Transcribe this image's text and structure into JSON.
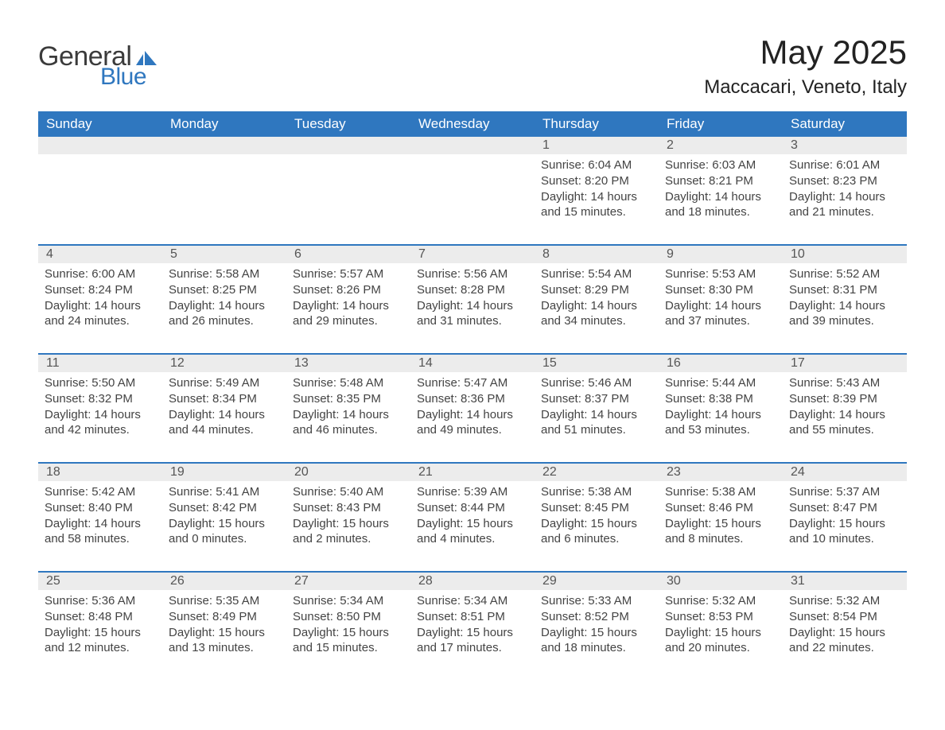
{
  "colors": {
    "brand_blue": "#2f77bf",
    "header_bg": "#2f77bf",
    "header_fg": "#ffffff",
    "row_separator": "#2f77bf",
    "daynum_bg": "#ececec",
    "text": "#333333",
    "page_bg": "#ffffff"
  },
  "logo": {
    "line1": "General",
    "line2": "Blue"
  },
  "title": {
    "month_year": "May 2025",
    "location": "Maccacari, Veneto, Italy"
  },
  "weekdays": [
    "Sunday",
    "Monday",
    "Tuesday",
    "Wednesday",
    "Thursday",
    "Friday",
    "Saturday"
  ],
  "labels": {
    "sunrise": "Sunrise",
    "sunset": "Sunset",
    "daylight": "Daylight"
  },
  "calendar": {
    "first_weekday_index": 4,
    "days": [
      {
        "n": 1,
        "sunrise": "6:04 AM",
        "sunset": "8:20 PM",
        "daylight": "14 hours and 15 minutes."
      },
      {
        "n": 2,
        "sunrise": "6:03 AM",
        "sunset": "8:21 PM",
        "daylight": "14 hours and 18 minutes."
      },
      {
        "n": 3,
        "sunrise": "6:01 AM",
        "sunset": "8:23 PM",
        "daylight": "14 hours and 21 minutes."
      },
      {
        "n": 4,
        "sunrise": "6:00 AM",
        "sunset": "8:24 PM",
        "daylight": "14 hours and 24 minutes."
      },
      {
        "n": 5,
        "sunrise": "5:58 AM",
        "sunset": "8:25 PM",
        "daylight": "14 hours and 26 minutes."
      },
      {
        "n": 6,
        "sunrise": "5:57 AM",
        "sunset": "8:26 PM",
        "daylight": "14 hours and 29 minutes."
      },
      {
        "n": 7,
        "sunrise": "5:56 AM",
        "sunset": "8:28 PM",
        "daylight": "14 hours and 31 minutes."
      },
      {
        "n": 8,
        "sunrise": "5:54 AM",
        "sunset": "8:29 PM",
        "daylight": "14 hours and 34 minutes."
      },
      {
        "n": 9,
        "sunrise": "5:53 AM",
        "sunset": "8:30 PM",
        "daylight": "14 hours and 37 minutes."
      },
      {
        "n": 10,
        "sunrise": "5:52 AM",
        "sunset": "8:31 PM",
        "daylight": "14 hours and 39 minutes."
      },
      {
        "n": 11,
        "sunrise": "5:50 AM",
        "sunset": "8:32 PM",
        "daylight": "14 hours and 42 minutes."
      },
      {
        "n": 12,
        "sunrise": "5:49 AM",
        "sunset": "8:34 PM",
        "daylight": "14 hours and 44 minutes."
      },
      {
        "n": 13,
        "sunrise": "5:48 AM",
        "sunset": "8:35 PM",
        "daylight": "14 hours and 46 minutes."
      },
      {
        "n": 14,
        "sunrise": "5:47 AM",
        "sunset": "8:36 PM",
        "daylight": "14 hours and 49 minutes."
      },
      {
        "n": 15,
        "sunrise": "5:46 AM",
        "sunset": "8:37 PM",
        "daylight": "14 hours and 51 minutes."
      },
      {
        "n": 16,
        "sunrise": "5:44 AM",
        "sunset": "8:38 PM",
        "daylight": "14 hours and 53 minutes."
      },
      {
        "n": 17,
        "sunrise": "5:43 AM",
        "sunset": "8:39 PM",
        "daylight": "14 hours and 55 minutes."
      },
      {
        "n": 18,
        "sunrise": "5:42 AM",
        "sunset": "8:40 PM",
        "daylight": "14 hours and 58 minutes."
      },
      {
        "n": 19,
        "sunrise": "5:41 AM",
        "sunset": "8:42 PM",
        "daylight": "15 hours and 0 minutes."
      },
      {
        "n": 20,
        "sunrise": "5:40 AM",
        "sunset": "8:43 PM",
        "daylight": "15 hours and 2 minutes."
      },
      {
        "n": 21,
        "sunrise": "5:39 AM",
        "sunset": "8:44 PM",
        "daylight": "15 hours and 4 minutes."
      },
      {
        "n": 22,
        "sunrise": "5:38 AM",
        "sunset": "8:45 PM",
        "daylight": "15 hours and 6 minutes."
      },
      {
        "n": 23,
        "sunrise": "5:38 AM",
        "sunset": "8:46 PM",
        "daylight": "15 hours and 8 minutes."
      },
      {
        "n": 24,
        "sunrise": "5:37 AM",
        "sunset": "8:47 PM",
        "daylight": "15 hours and 10 minutes."
      },
      {
        "n": 25,
        "sunrise": "5:36 AM",
        "sunset": "8:48 PM",
        "daylight": "15 hours and 12 minutes."
      },
      {
        "n": 26,
        "sunrise": "5:35 AM",
        "sunset": "8:49 PM",
        "daylight": "15 hours and 13 minutes."
      },
      {
        "n": 27,
        "sunrise": "5:34 AM",
        "sunset": "8:50 PM",
        "daylight": "15 hours and 15 minutes."
      },
      {
        "n": 28,
        "sunrise": "5:34 AM",
        "sunset": "8:51 PM",
        "daylight": "15 hours and 17 minutes."
      },
      {
        "n": 29,
        "sunrise": "5:33 AM",
        "sunset": "8:52 PM",
        "daylight": "15 hours and 18 minutes."
      },
      {
        "n": 30,
        "sunrise": "5:32 AM",
        "sunset": "8:53 PM",
        "daylight": "15 hours and 20 minutes."
      },
      {
        "n": 31,
        "sunrise": "5:32 AM",
        "sunset": "8:54 PM",
        "daylight": "15 hours and 22 minutes."
      }
    ]
  }
}
